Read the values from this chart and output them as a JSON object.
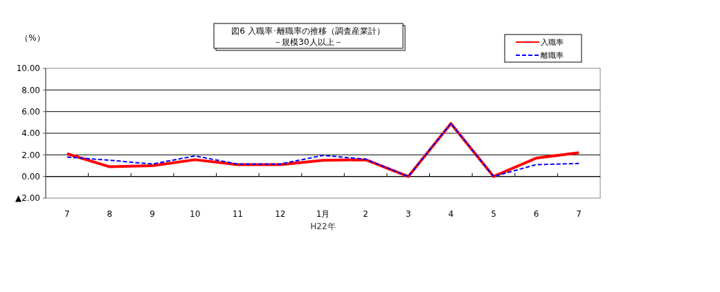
{
  "chart_data": {
    "type": "line",
    "title": "図6 入職率･離職率の推移（調査産業計）",
    "subtitle": "－規模30人以上－",
    "ylabel": "（%）",
    "categories": [
      "7",
      "8",
      "9",
      "10",
      "11",
      "12",
      "1月",
      "2",
      "3",
      "4",
      "5",
      "6",
      "7"
    ],
    "series": [
      {
        "name": "入職率",
        "color": "#ff0000",
        "line_style": "solid",
        "values": [
          2.1,
          0.9,
          1.0,
          1.55,
          1.1,
          1.1,
          1.5,
          1.55,
          0.0,
          4.9,
          0.0,
          1.7,
          2.2
        ]
      },
      {
        "name": "離職率",
        "color": "#0000ff",
        "line_style": "dashed",
        "values": [
          1.8,
          1.5,
          1.15,
          1.9,
          1.15,
          1.15,
          1.95,
          1.6,
          0.0,
          4.9,
          0.0,
          1.1,
          1.2
        ]
      }
    ],
    "ylim": [
      -2,
      10
    ],
    "yticks": [
      {
        "value": 10,
        "label": "10.00"
      },
      {
        "value": 8,
        "label": "8.00"
      },
      {
        "value": 6,
        "label": "6.00"
      },
      {
        "value": 4,
        "label": "4.00"
      },
      {
        "value": 2,
        "label": "2.00"
      },
      {
        "value": 0,
        "label": "0.00"
      },
      {
        "value": -2,
        "label": "▲2.00"
      }
    ],
    "grid": "y",
    "legend": "top right",
    "annotations": [
      "H22年"
    ]
  }
}
